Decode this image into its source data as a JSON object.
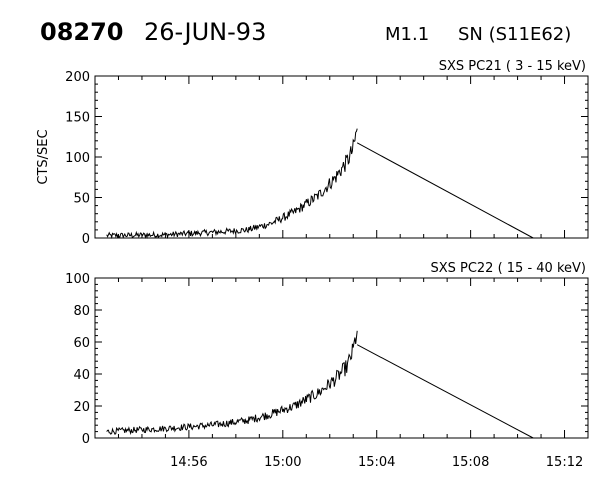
{
  "header": {
    "event_id": "08270",
    "date": "26-JUN-93",
    "class": "M1.1",
    "location": "SN (S11E62)"
  },
  "chart_data": [
    {
      "type": "line",
      "title": "SXS PC21  (  3 - 15 keV)",
      "ylabel": "CTS/SEC",
      "xlabel": "",
      "xlim": [
        "14:52",
        "15:13"
      ],
      "ylim": [
        0,
        200
      ],
      "yticks": [
        "0",
        "50",
        "100",
        "150",
        "200"
      ],
      "xticks": [
        "14:56",
        "15:00",
        "15:04",
        "15:08",
        "15:12"
      ],
      "grid": false,
      "series": [
        {
          "x": [
            "14:52:30",
            "14:55:00",
            "14:57:00",
            "14:58:30",
            "14:59:30",
            "15:00:30",
            "15:01:30",
            "15:02:15",
            "15:02:45",
            "15:03:00",
            "15:03:10",
            "15:10:40"
          ],
          "values": [
            3,
            4,
            7,
            10,
            18,
            32,
            52,
            75,
            95,
            110,
            135,
            0
          ]
        }
      ]
    },
    {
      "type": "line",
      "title": "SXS PC22  ( 15 - 40 keV)",
      "ylabel": "",
      "xlabel": "",
      "xlim": [
        "14:52",
        "15:13"
      ],
      "ylim": [
        0,
        100
      ],
      "yticks": [
        "0",
        "20",
        "40",
        "60",
        "80",
        "100"
      ],
      "xticks": [
        "14:56",
        "15:00",
        "15:04",
        "15:08",
        "15:12"
      ],
      "grid": false,
      "series": [
        {
          "x": [
            "14:52:30",
            "14:55:00",
            "14:57:00",
            "14:58:30",
            "14:59:30",
            "15:00:30",
            "15:01:30",
            "15:02:15",
            "15:02:45",
            "15:03:00",
            "15:03:10",
            "15:10:40"
          ],
          "values": [
            4,
            6,
            8,
            11,
            15,
            20,
            28,
            37,
            45,
            55,
            67,
            0
          ]
        }
      ]
    }
  ]
}
